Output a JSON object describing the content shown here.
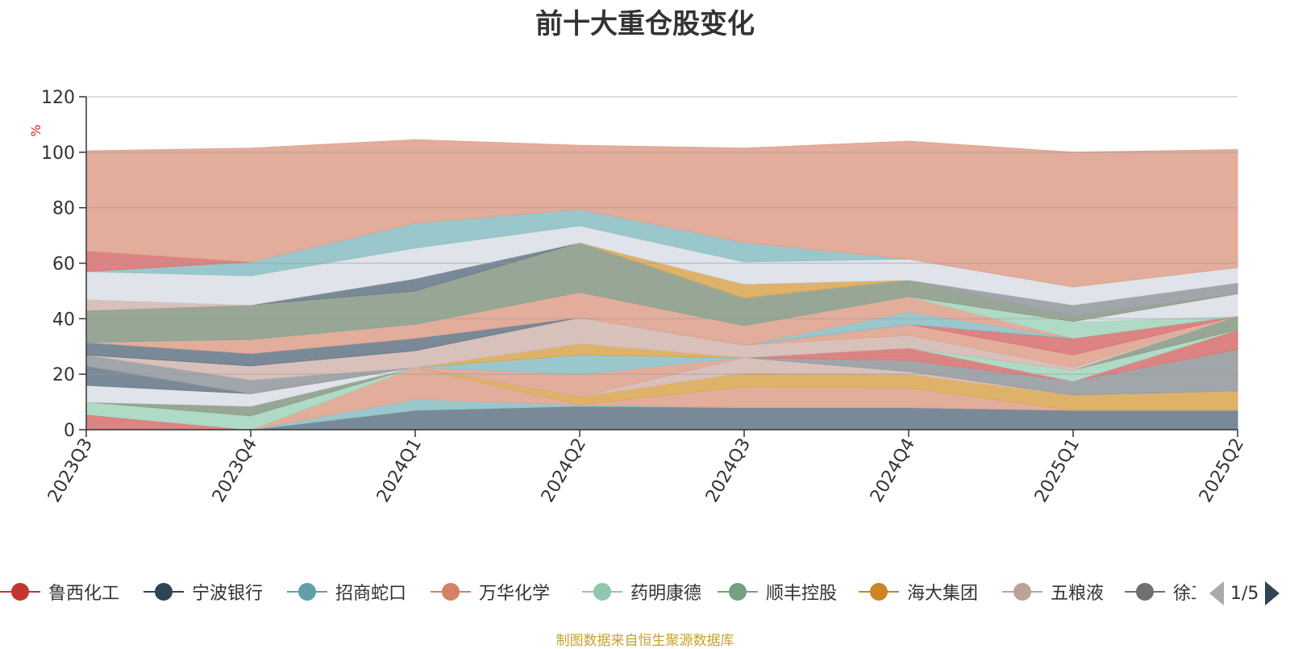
{
  "chart_data": {
    "type": "area",
    "title": "前十大重仓股变化",
    "ylabel": "%",
    "ylim": [
      0,
      120
    ],
    "yticks": [
      0,
      20,
      40,
      60,
      80,
      100,
      120
    ],
    "stacked": true,
    "categories": [
      "2023Q3",
      "2023Q4",
      "2024Q1",
      "2024Q2",
      "2024Q3",
      "2024Q4",
      "2025Q1",
      "2025Q2"
    ],
    "series": [
      {
        "name": "",
        "color": "#6e7f8f",
        "values": [
          0,
          0,
          7,
          8.5,
          8,
          8,
          7,
          7
        ]
      },
      {
        "name": "",
        "color": "#91c2c7",
        "values": [
          0,
          0,
          4,
          0.5,
          0,
          0,
          0,
          0
        ]
      },
      {
        "name": "",
        "color": "#e1a692",
        "values": [
          0,
          0,
          11.5,
          0,
          7.5,
          7,
          0,
          0
        ]
      },
      {
        "name": "",
        "color": "#dbab5b",
        "values": [
          0,
          0,
          0,
          3,
          5,
          5,
          5.5,
          7
        ]
      },
      {
        "name": "",
        "color": "#d5bcb5",
        "values": [
          0,
          0,
          0,
          0,
          5.5,
          1,
          0,
          0
        ]
      },
      {
        "name": "",
        "color": "#999ea4",
        "values": [
          0,
          0,
          0,
          0,
          0,
          4,
          5,
          15
        ]
      },
      {
        "name": "",
        "color": "#e1a692",
        "values": [
          0,
          0,
          0,
          8,
          0,
          0,
          0,
          0
        ]
      },
      {
        "name": "",
        "color": "#91c2c7",
        "values": [
          0,
          0,
          0,
          7,
          0,
          0,
          0,
          0
        ]
      },
      {
        "name": "",
        "color": "#d97878",
        "values": [
          5.5,
          0,
          0,
          0,
          0,
          4.5,
          0,
          7
        ]
      },
      {
        "name": "",
        "color": "#a8d8c1",
        "values": [
          4.5,
          5,
          0,
          0,
          0,
          0,
          4,
          0
        ]
      },
      {
        "name": "",
        "color": "#8fa08c",
        "values": [
          0,
          3.5,
          0,
          0,
          0,
          0,
          0,
          5
        ]
      },
      {
        "name": "",
        "color": "#dde1e7",
        "values": [
          6,
          4.5,
          0,
          0,
          0,
          0,
          0,
          0
        ]
      },
      {
        "name": "",
        "color": "#6e7f8f",
        "values": [
          7,
          0,
          0,
          0,
          0,
          0,
          0,
          0
        ]
      },
      {
        "name": "",
        "color": "#dbab5b",
        "values": [
          0,
          0,
          0,
          4,
          0,
          0,
          0,
          0
        ]
      },
      {
        "name": "",
        "color": "#999ea4",
        "values": [
          4,
          5,
          0,
          0,
          0,
          0,
          0,
          0
        ]
      },
      {
        "name": "",
        "color": "#d5bcb5",
        "values": [
          0,
          5,
          6,
          9.5,
          4.5,
          4.5,
          1,
          0
        ]
      },
      {
        "name": "",
        "color": "#e1a692",
        "values": [
          0,
          0,
          0,
          0,
          0,
          4,
          4.5,
          0
        ]
      },
      {
        "name": "",
        "color": "#d97878",
        "values": [
          0,
          0,
          0,
          0,
          0,
          0,
          6,
          0
        ]
      },
      {
        "name": "",
        "color": "#6e7f8f",
        "values": [
          4.5,
          4.5,
          4.5,
          0,
          0,
          0,
          0,
          0
        ]
      },
      {
        "name": "",
        "color": "#91c2c7",
        "values": [
          0,
          0,
          0,
          0,
          0,
          4.5,
          0,
          0
        ]
      },
      {
        "name": "",
        "color": "#e1a692",
        "values": [
          0,
          5,
          5,
          9,
          7,
          5.5,
          0,
          0
        ]
      },
      {
        "name": "",
        "color": "#a8d8c1",
        "values": [
          0,
          0,
          0,
          0,
          0,
          0,
          6,
          0
        ]
      },
      {
        "name": "",
        "color": "#dde1e7",
        "values": [
          0,
          0,
          0,
          0,
          0,
          0,
          0,
          8
        ]
      },
      {
        "name": "",
        "color": "#8fa08c",
        "values": [
          11.5,
          12.5,
          12,
          18,
          10,
          6,
          2,
          0
        ]
      },
      {
        "name": "",
        "color": "#dbab5b",
        "values": [
          0,
          0,
          0,
          0,
          5,
          0,
          0,
          0
        ]
      },
      {
        "name": "",
        "color": "#6e7f8f",
        "values": [
          0,
          0,
          4.5,
          0,
          0,
          0,
          0,
          0
        ]
      },
      {
        "name": "",
        "color": "#d5bcb5",
        "values": [
          4,
          0,
          0,
          0,
          0,
          0,
          0,
          0
        ]
      },
      {
        "name": "",
        "color": "#999ea4",
        "values": [
          0,
          0,
          0,
          0,
          0,
          0,
          4,
          4
        ]
      },
      {
        "name": "",
        "color": "#dde1e7",
        "values": [
          10,
          10.5,
          11,
          6,
          8,
          7.5,
          6.5,
          5.5
        ]
      },
      {
        "name": "",
        "color": "#91c2c7",
        "values": [
          0,
          5,
          9,
          6,
          7,
          0,
          0,
          0
        ]
      },
      {
        "name": "",
        "color": "#d97878",
        "values": [
          7.5,
          0,
          0,
          0,
          0,
          0,
          0,
          0
        ]
      },
      {
        "name": "",
        "color": "#e1a692",
        "values": [
          36,
          41,
          30,
          23,
          34,
          42.5,
          48.5,
          42.5
        ]
      }
    ],
    "legend": {
      "position": "bottom",
      "items": [
        {
          "name": "鲁西化工",
          "color": "#c23531"
        },
        {
          "name": "宁波银行",
          "color": "#2f4554"
        },
        {
          "name": "招商蛇口",
          "color": "#61a0a8"
        },
        {
          "name": "万华化学",
          "color": "#d48265"
        },
        {
          "name": "药明康德",
          "color": "#91c7ae"
        },
        {
          "name": "顺丰控股",
          "color": "#749f83"
        },
        {
          "name": "海大集团",
          "color": "#ca8622"
        },
        {
          "name": "五粮液",
          "color": "#bda29a"
        },
        {
          "name": "徐工",
          "color": "#6e7074"
        }
      ]
    },
    "grid": true
  },
  "pager": {
    "text": "1/5"
  },
  "source": "制图数据来自恒生聚源数据库"
}
